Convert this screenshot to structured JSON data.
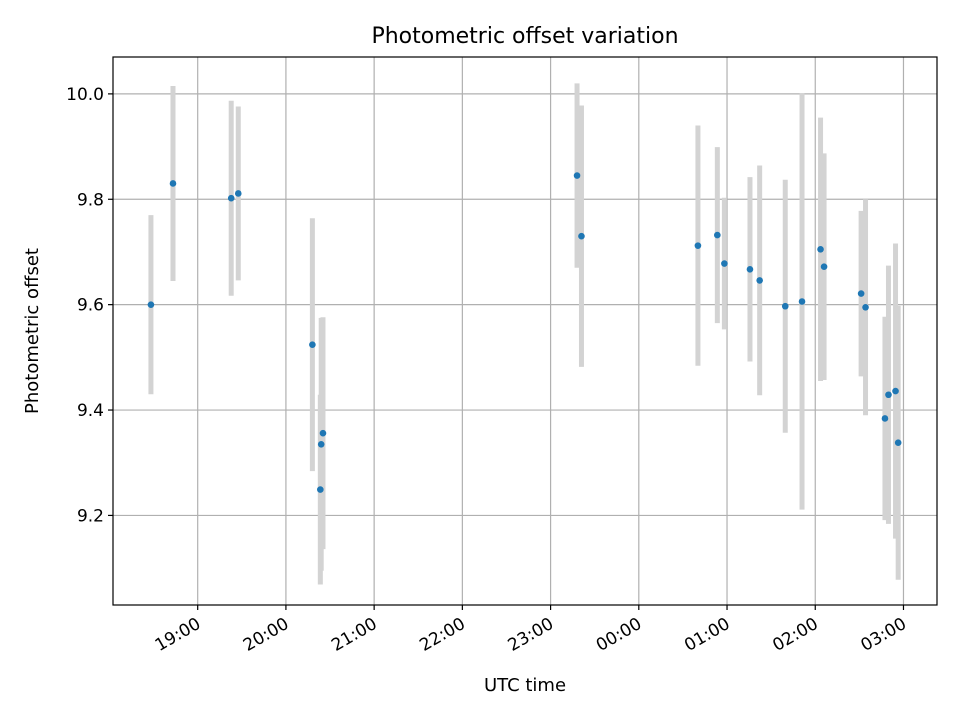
{
  "chart_data": {
    "type": "scatter",
    "title": "Photometric offset variation",
    "xlabel": "UTC time",
    "ylabel": "Photometric offset",
    "x_unit": "hours (continuous across midnight)",
    "xlim": [
      18.04,
      27.38
    ],
    "ylim": [
      9.03,
      10.07
    ],
    "x_ticks": [
      {
        "value": 19,
        "label": "19:00"
      },
      {
        "value": 20,
        "label": "20:00"
      },
      {
        "value": 21,
        "label": "21:00"
      },
      {
        "value": 22,
        "label": "22:00"
      },
      {
        "value": 23,
        "label": "23:00"
      },
      {
        "value": 24,
        "label": "00:00"
      },
      {
        "value": 25,
        "label": "01:00"
      },
      {
        "value": 26,
        "label": "02:00"
      },
      {
        "value": 27,
        "label": "03:00"
      }
    ],
    "y_ticks": [
      {
        "value": 9.2,
        "label": "9.2"
      },
      {
        "value": 9.4,
        "label": "9.4"
      },
      {
        "value": 9.6,
        "label": "9.6"
      },
      {
        "value": 9.8,
        "label": "9.8"
      },
      {
        "value": 10.0,
        "label": "10.0"
      }
    ],
    "grid": true,
    "colors": {
      "point": "#1f77b4",
      "errorbar": "#d3d3d3",
      "grid": "#b0b0b0"
    },
    "points": [
      {
        "x": 18.47,
        "y": 9.6,
        "err": 0.17
      },
      {
        "x": 18.72,
        "y": 9.83,
        "err": 0.185
      },
      {
        "x": 19.38,
        "y": 9.802,
        "err": 0.185
      },
      {
        "x": 19.46,
        "y": 9.811,
        "err": 0.165
      },
      {
        "x": 20.3,
        "y": 9.524,
        "err": 0.24
      },
      {
        "x": 20.39,
        "y": 9.249,
        "err": 0.18
      },
      {
        "x": 20.4,
        "y": 9.335,
        "err": 0.24
      },
      {
        "x": 20.42,
        "y": 9.356,
        "err": 0.22
      },
      {
        "x": 23.3,
        "y": 9.845,
        "err": 0.175
      },
      {
        "x": 23.35,
        "y": 9.73,
        "err": 0.248
      },
      {
        "x": 24.67,
        "y": 9.712,
        "err": 0.228
      },
      {
        "x": 24.89,
        "y": 9.732,
        "err": 0.167
      },
      {
        "x": 24.97,
        "y": 9.678,
        "err": 0.125
      },
      {
        "x": 25.26,
        "y": 9.667,
        "err": 0.175
      },
      {
        "x": 25.37,
        "y": 9.646,
        "err": 0.218
      },
      {
        "x": 25.66,
        "y": 9.597,
        "err": 0.24
      },
      {
        "x": 25.85,
        "y": 9.606,
        "err": 0.395
      },
      {
        "x": 26.06,
        "y": 9.705,
        "err": 0.25
      },
      {
        "x": 26.1,
        "y": 9.672,
        "err": 0.215
      },
      {
        "x": 26.52,
        "y": 9.621,
        "err": 0.157
      },
      {
        "x": 26.57,
        "y": 9.595,
        "err": 0.205
      },
      {
        "x": 26.79,
        "y": 9.384,
        "err": 0.193
      },
      {
        "x": 26.83,
        "y": 9.429,
        "err": 0.245
      },
      {
        "x": 26.91,
        "y": 9.436,
        "err": 0.28
      },
      {
        "x": 26.94,
        "y": 9.338,
        "err": 0.26
      }
    ]
  }
}
